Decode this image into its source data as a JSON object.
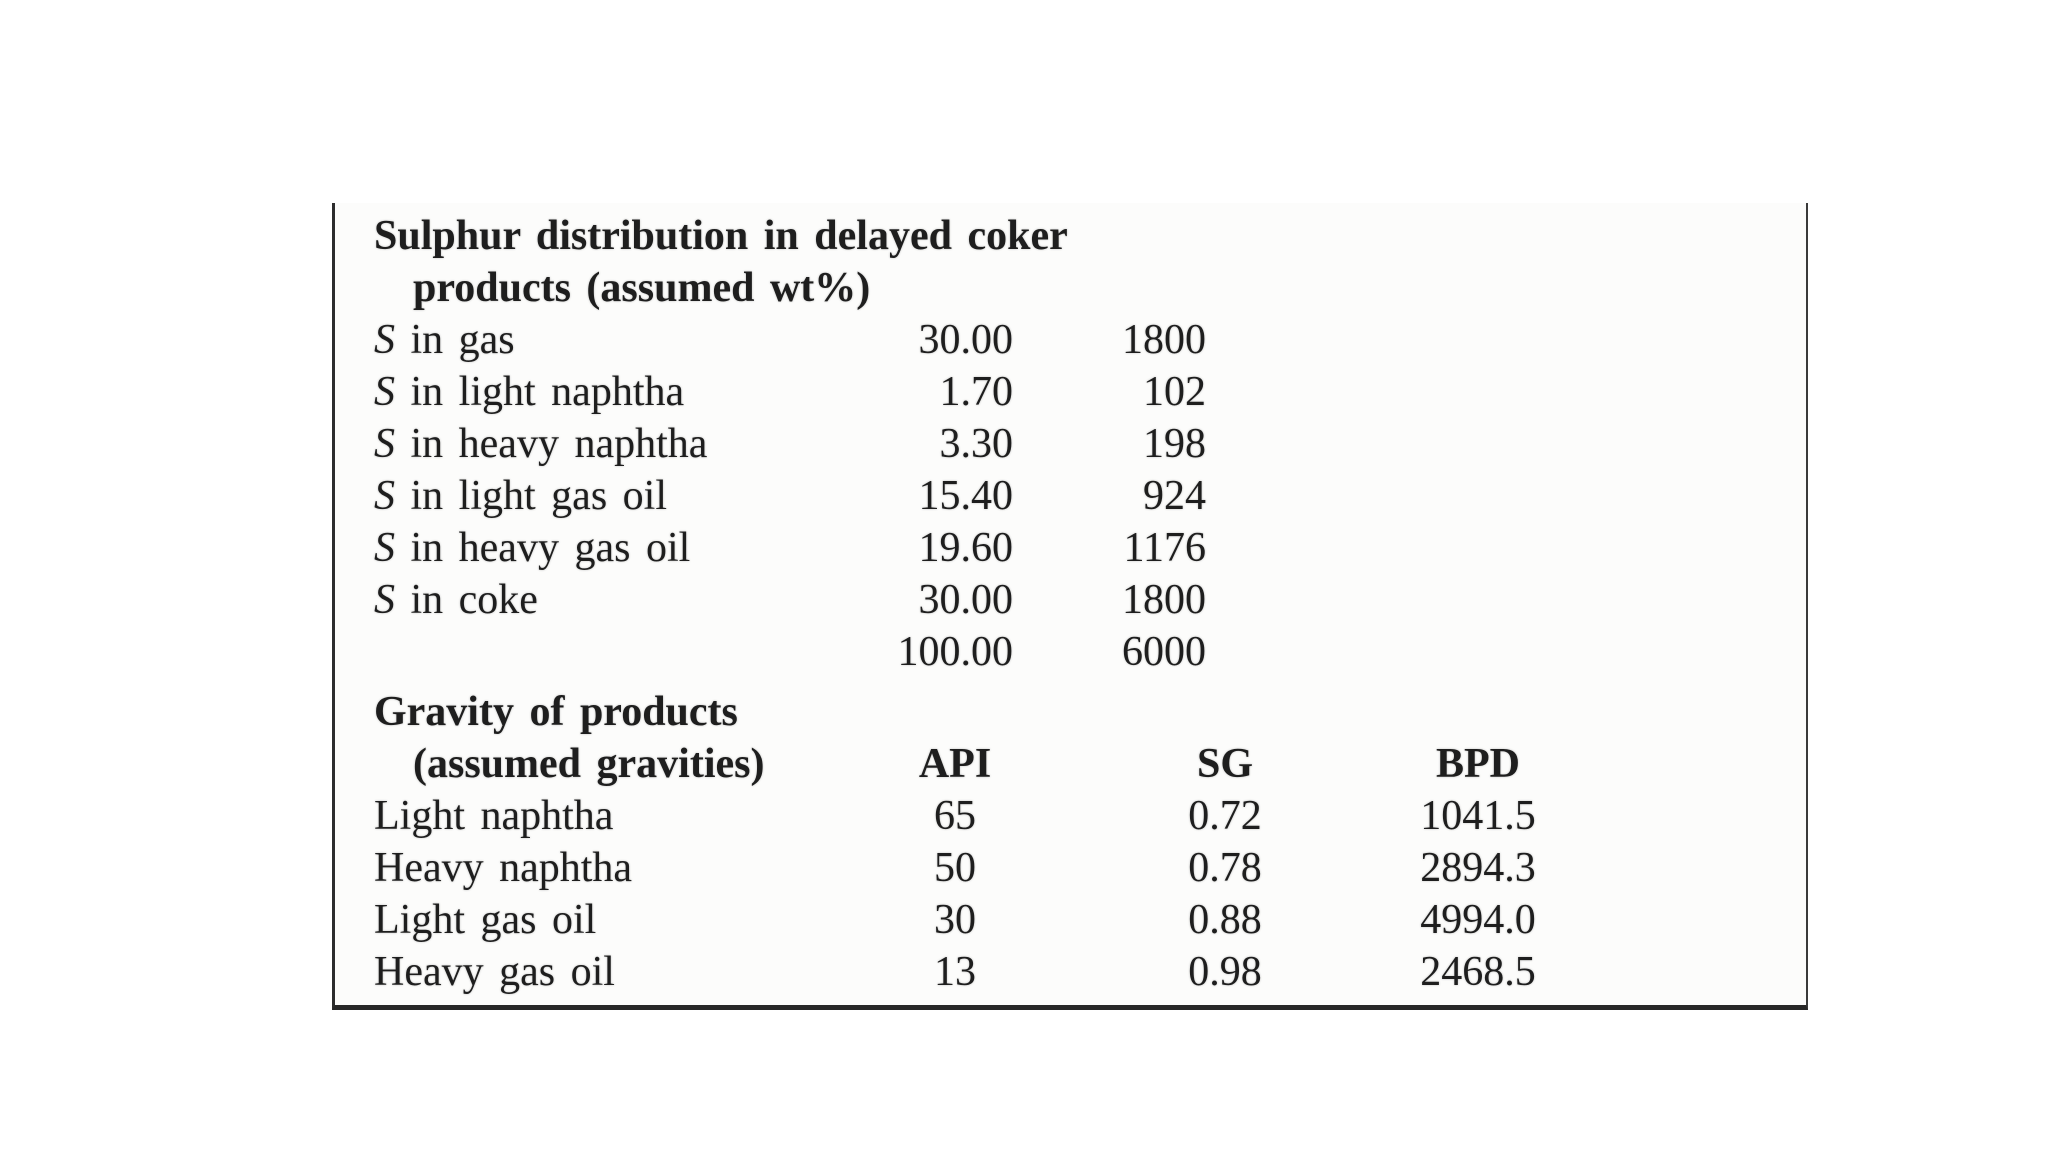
{
  "document": {
    "sulphur_section": {
      "title_line1": "Sulphur distribution in delayed coker",
      "title_line2": "products (assumed wt%)",
      "rows": [
        {
          "symbol": "S",
          "label": " in gas",
          "wt_pct": "30.00",
          "ppm": "1800"
        },
        {
          "symbol": "S",
          "label": " in light naphtha",
          "wt_pct": "1.70",
          "ppm": "102"
        },
        {
          "symbol": "S",
          "label": " in heavy naphtha",
          "wt_pct": "3.30",
          "ppm": "198"
        },
        {
          "symbol": "S",
          "label": " in light gas oil",
          "wt_pct": "15.40",
          "ppm": "924"
        },
        {
          "symbol": "S",
          "label": " in heavy gas oil",
          "wt_pct": "19.60",
          "ppm": "1176"
        },
        {
          "symbol": "S",
          "label": " in coke",
          "wt_pct": "30.00",
          "ppm": "1800"
        }
      ],
      "total_wt_pct": "100.00",
      "total_ppm": "6000"
    },
    "gravity_section": {
      "title_line1": "Gravity of products",
      "title_line2": "(assumed gravities)",
      "col_api": "API",
      "col_sg": "SG",
      "col_bpd": "BPD",
      "rows": [
        {
          "label": "Light naphtha",
          "api": "65",
          "sg": "0.72",
          "bpd": "1041.5"
        },
        {
          "label": "Heavy naphtha",
          "api": "50",
          "sg": "0.78",
          "bpd": "2894.3"
        },
        {
          "label": "Light gas oil",
          "api": "30",
          "sg": "0.88",
          "bpd": "4994.0"
        },
        {
          "label": "Heavy gas oil",
          "api": "13",
          "sg": "0.98",
          "bpd": "2468.5"
        }
      ]
    }
  }
}
